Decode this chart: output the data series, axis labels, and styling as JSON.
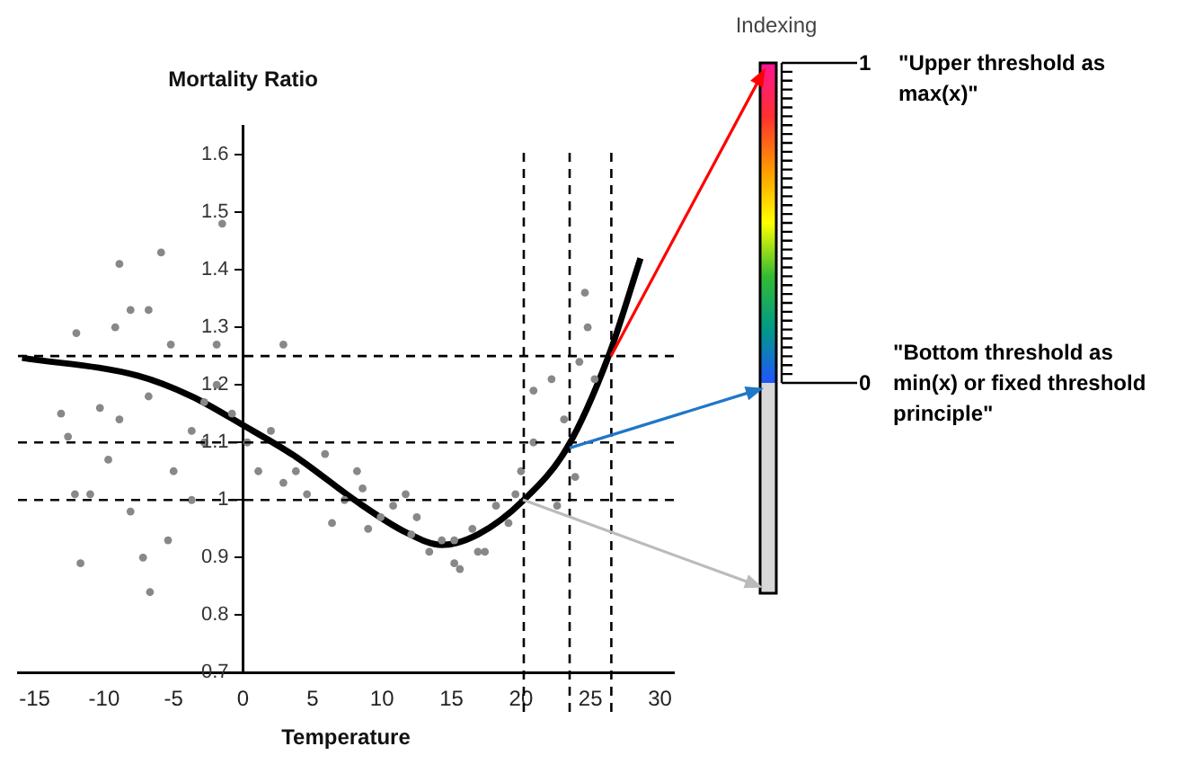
{
  "chart_data": {
    "type": "scatter",
    "ylabel": "Mortality Ratio",
    "xlabel": "Temperature",
    "xlim": [
      -16.2,
      31
    ],
    "xticks": [
      -15,
      -10,
      -5,
      0,
      5,
      10,
      15,
      20,
      25,
      30
    ],
    "ylim": [
      0.7,
      1.65
    ],
    "yticks": [
      0.7,
      0.8,
      0.9,
      1,
      1.1,
      1.2,
      1.3,
      1.4,
      1.5,
      1.6
    ],
    "grid": false,
    "legend": false,
    "marker": "circle",
    "annotations": [
      "Indexing",
      "1",
      "\"Upper threshold as max(x)\"",
      "0",
      "\"Bottom threshold as min(x) or fixed threshold principle\""
    ],
    "ref_lines": [
      {
        "axis": "y",
        "value": 1.25,
        "color": "#000000",
        "line_style": "dashed"
      },
      {
        "axis": "y",
        "value": 1.1,
        "color": "#000000",
        "line_style": "dashed"
      },
      {
        "axis": "y",
        "value": 1.0,
        "color": "#000000",
        "line_style": "dashed"
      },
      {
        "axis": "x",
        "value": 20.2,
        "color": "#000000",
        "line_style": "dashed"
      },
      {
        "axis": "x",
        "value": 23.5,
        "color": "#000000",
        "line_style": "dashed"
      },
      {
        "axis": "x",
        "value": 26.5,
        "color": "#000000",
        "line_style": "dashed"
      }
    ],
    "series": [
      {
        "color": "#888888",
        "x": [
          -8.9,
          -5.9,
          -12.0,
          -9.2,
          -8.1,
          -6.8,
          -5.2,
          -1.9,
          2.9,
          -1.5,
          -13.1,
          -12.6,
          -12.1,
          -11.0,
          -9.7,
          -11.7,
          -7.2,
          -6.7,
          -8.1,
          -5.4,
          -5.0,
          -3.7,
          -2.8,
          -1.9,
          -0.8,
          0.3,
          1.1,
          2.0,
          3.8,
          4.6,
          5.9,
          7.3,
          8.6,
          9.9,
          10.8,
          12.1,
          13.4,
          14.3,
          15.6,
          16.5,
          17.4,
          18.2,
          19.1,
          20.0,
          20.9,
          20.9,
          22.2,
          23.1,
          22.6,
          23.9,
          24.6,
          24.8,
          24.2,
          25.3,
          2.9,
          -2.8,
          6.4,
          9.0,
          12.5,
          15.2,
          19.6,
          11.7,
          8.2,
          -3.7,
          -8.9,
          -6.8,
          -10.3,
          15.2,
          16.9
        ],
        "values": [
          1.41,
          1.43,
          1.29,
          1.3,
          1.33,
          1.33,
          1.27,
          1.27,
          1.27,
          1.48,
          1.15,
          1.11,
          1.01,
          1.01,
          1.07,
          0.89,
          0.9,
          0.84,
          0.98,
          0.93,
          1.05,
          1.12,
          1.17,
          1.2,
          1.15,
          1.1,
          1.05,
          1.12,
          1.05,
          1.01,
          1.08,
          1.0,
          1.02,
          0.97,
          0.99,
          0.94,
          0.91,
          0.93,
          0.88,
          0.95,
          0.91,
          0.99,
          0.96,
          1.05,
          1.1,
          1.19,
          1.21,
          1.14,
          0.99,
          1.04,
          1.36,
          1.3,
          1.24,
          1.21,
          1.03,
          1.1,
          0.96,
          0.95,
          0.97,
          0.93,
          1.01,
          1.01,
          1.05,
          1.0,
          1.14,
          1.18,
          1.16,
          0.89,
          0.91
        ]
      },
      {
        "type": "line",
        "color": "#000000",
        "marker": "none",
        "x": [
          -15.9,
          -7.6,
          -3.7,
          0,
          3.8,
          8.2,
          11.7,
          14.3,
          16.9,
          20.2,
          23.3,
          26.3,
          28.6
        ],
        "values": [
          1.247,
          1.216,
          1.18,
          1.13,
          1.075,
          0.997,
          0.944,
          0.922,
          0.94,
          1.0,
          1.09,
          1.25,
          1.42
        ]
      }
    ]
  }
}
